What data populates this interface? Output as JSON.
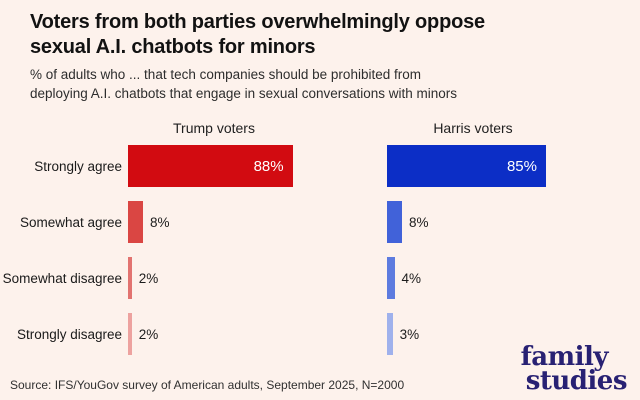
{
  "header": {
    "title_lines": [
      "Voters from both parties overwhelmingly oppose",
      "sexual A.I. chatbots for minors"
    ],
    "subtitle_lines": [
      "% of adults who ... that tech companies should be prohibited from",
      "deploying A.I. chatbots that engage in sexual conversations with minors"
    ]
  },
  "chart_data": {
    "type": "bar",
    "orientation": "horizontal",
    "categories": [
      "Strongly agree",
      "Somewhat agree",
      "Somewhat disagree",
      "Strongly disagree"
    ],
    "series": [
      {
        "name": "Trump voters",
        "values": [
          88,
          8,
          2,
          2
        ],
        "base_color": "#d20b11",
        "bar_colors": [
          "#d20b11",
          "#da4643",
          "#e27370",
          "#eda29f"
        ]
      },
      {
        "name": "Harris voters",
        "values": [
          85,
          8,
          4,
          3
        ],
        "base_color": "#0c2ec6",
        "bar_colors": [
          "#0c2ec6",
          "#4162d9",
          "#5d7bdf",
          "#9fb1ec"
        ]
      }
    ],
    "value_suffix": "%",
    "xlim": [
      0,
      100
    ],
    "value_labels_shown": true,
    "grid": false,
    "legend_position": "column headers above each panel"
  },
  "footer": {
    "source": "Source: IFS/YouGov survey of American adults, September 2025, N=2000",
    "logo_line1": "family",
    "logo_line2": "studies"
  },
  "colors": {
    "background": "#fdf2ec",
    "title_text": "#121212",
    "logo_navy": "#282173"
  }
}
